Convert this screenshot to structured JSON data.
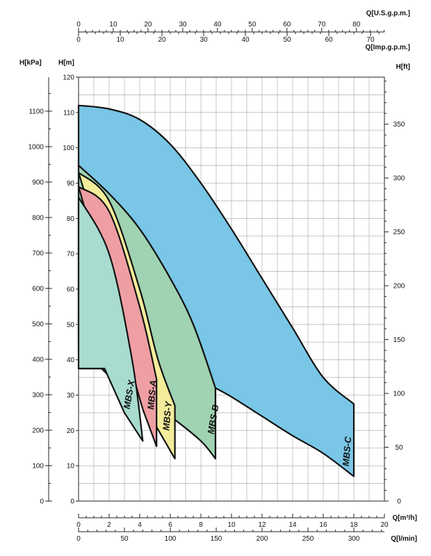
{
  "chart_data": {
    "type": "area",
    "axes": {
      "left_kpa": {
        "label": "H[kPa]",
        "ticks": [
          0,
          100,
          200,
          300,
          400,
          500,
          600,
          700,
          800,
          900,
          1000,
          1100
        ],
        "range": [
          0,
          1196
        ]
      },
      "left_m": {
        "label": "H[m]",
        "ticks": [
          0,
          10,
          20,
          30,
          40,
          50,
          60,
          70,
          80,
          90,
          100,
          110,
          120
        ],
        "range": [
          0,
          120
        ]
      },
      "right_ft": {
        "label": "H[ft]",
        "ticks": [
          0,
          50,
          100,
          150,
          200,
          250,
          300,
          350
        ],
        "range": [
          0,
          393.7
        ]
      },
      "bottom_m3h": {
        "label": "Q[m³/h]",
        "ticks": [
          0,
          2,
          4,
          6,
          8,
          10,
          12,
          14,
          16,
          18,
          20
        ],
        "range": [
          0,
          20
        ]
      },
      "bottom_lmin": {
        "label": "Q[l/min]",
        "ticks": [
          0,
          50,
          100,
          150,
          200,
          250,
          300
        ],
        "range": [
          0,
          333.3
        ]
      },
      "top_usgpm": {
        "label": "Q[U.S.g.p.m.]",
        "ticks": [
          0,
          10,
          20,
          30,
          40,
          50,
          60,
          70,
          80
        ],
        "range": [
          0,
          88.06
        ]
      },
      "top_impgpm": {
        "label": "Q[Imp.g.p.m.]",
        "ticks": [
          0,
          10,
          20,
          30,
          40,
          50,
          60,
          70
        ],
        "range": [
          0,
          73.33
        ]
      }
    },
    "grid": true,
    "series": [
      {
        "name": "MBS-C",
        "color": "#79c6e6",
        "upper": [
          [
            0,
            112
          ],
          [
            2,
            111
          ],
          [
            4,
            108
          ],
          [
            6,
            101
          ],
          [
            8,
            90
          ],
          [
            10,
            77
          ],
          [
            12,
            63
          ],
          [
            14,
            49
          ],
          [
            16,
            35
          ],
          [
            18,
            27.5
          ]
        ],
        "lower": [
          [
            8.95,
            32
          ],
          [
            10,
            29.5
          ],
          [
            12,
            24
          ],
          [
            14,
            18.5
          ],
          [
            16,
            13.5
          ],
          [
            18,
            7
          ]
        ]
      },
      {
        "name": "MBS-B",
        "color": "#9fd3b2",
        "upper": [
          [
            0,
            95
          ],
          [
            2,
            87
          ],
          [
            4,
            77
          ],
          [
            6,
            63
          ],
          [
            7.5,
            50
          ],
          [
            8.95,
            32
          ]
        ],
        "lower": [
          [
            0,
            44.5
          ],
          [
            1,
            40
          ],
          [
            2,
            35.5
          ],
          [
            4,
            30
          ],
          [
            6,
            24
          ],
          [
            8,
            17
          ],
          [
            8.95,
            12
          ]
        ]
      },
      {
        "name": "MBS-Y",
        "color": "#f3ec9b",
        "upper": [
          [
            0,
            93
          ],
          [
            2,
            85
          ],
          [
            4,
            60
          ],
          [
            5.2,
            40
          ],
          [
            6.3,
            27
          ]
        ],
        "lower": [
          [
            6.3,
            12
          ],
          [
            5.1,
            21
          ]
        ]
      },
      {
        "name": "MBS-A",
        "color": "#ef9fa4",
        "upper": [
          [
            0,
            89
          ],
          [
            2,
            82
          ],
          [
            4,
            55
          ],
          [
            5.1,
            34.5
          ]
        ],
        "lower": [
          [
            5.1,
            15.5
          ],
          [
            4.2,
            26
          ]
        ]
      },
      {
        "name": "MBS-X",
        "color": "#a8dccf",
        "upper": [
          [
            0,
            86
          ],
          [
            2,
            70
          ],
          [
            3.5,
            40
          ],
          [
            4.2,
            17
          ]
        ],
        "lower": [
          [
            4.2,
            17
          ],
          [
            3,
            25
          ],
          [
            1.7,
            37.5
          ],
          [
            0,
            37.5
          ]
        ]
      }
    ],
    "annotations": [
      "MBS-X",
      "MBS-A",
      "MBS-Y",
      "MBS-B",
      "MBS-C"
    ]
  }
}
